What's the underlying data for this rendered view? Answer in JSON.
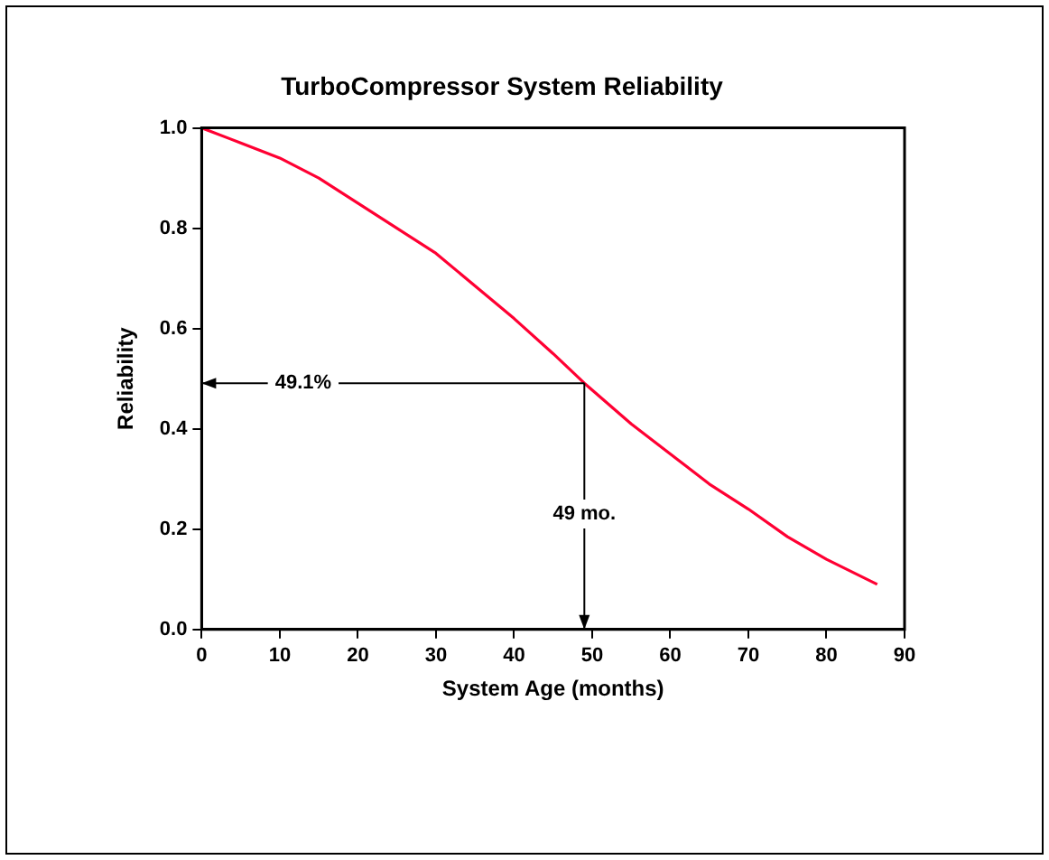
{
  "chart_data": {
    "type": "line",
    "title": "TurboCompressor System Reliability",
    "xlabel": "System Age (months)",
    "ylabel": "Reliability",
    "x": [
      0,
      5,
      10,
      15,
      20,
      25,
      30,
      35,
      40,
      45,
      49,
      55,
      60,
      65,
      70,
      75,
      80,
      86.5
    ],
    "series": [
      {
        "color": "#ff0033",
        "values": [
          1.0,
          0.97,
          0.94,
          0.9,
          0.85,
          0.8,
          0.75,
          0.685,
          0.62,
          0.55,
          0.491,
          0.41,
          0.35,
          0.29,
          0.24,
          0.185,
          0.14,
          0.09
        ]
      }
    ],
    "xlim": [
      0,
      90
    ],
    "xticks": [
      0,
      10,
      20,
      30,
      40,
      50,
      60,
      70,
      80,
      90
    ],
    "ylim": [
      0,
      1
    ],
    "yticks": [
      {
        "value": 0,
        "label": "0.0"
      },
      0.2,
      0.4,
      0.6,
      0.8,
      {
        "value": 1,
        "label": "1.0"
      }
    ],
    "grid": false,
    "legend": false,
    "marker": "none",
    "line_style": "solid",
    "annotations": [
      {
        "text": "49.1%",
        "x": 13,
        "y": 0.491
      },
      {
        "text": "49 mo.",
        "x": 49,
        "y": 0.23
      }
    ]
  }
}
